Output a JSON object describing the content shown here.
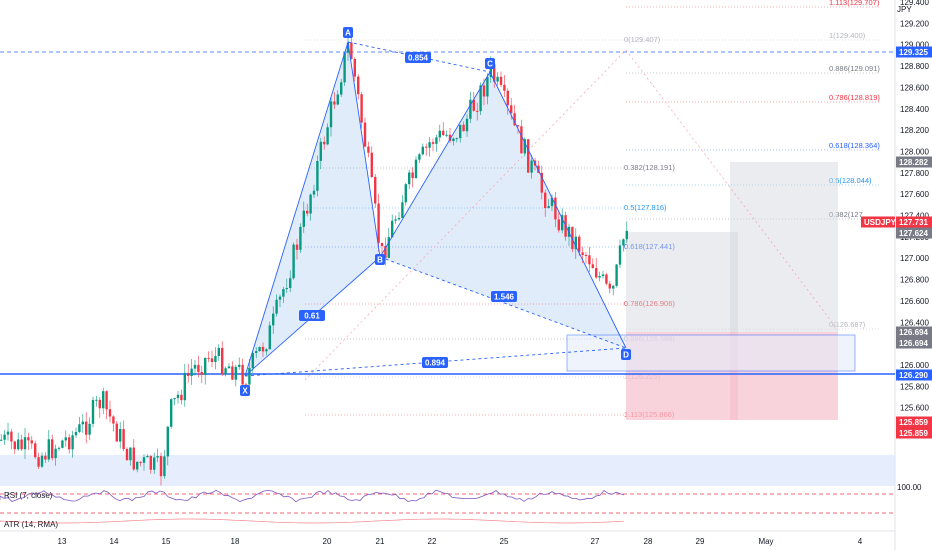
{
  "chart_data": {
    "type": "candlestick",
    "symbol": "USDJPY",
    "currency": "JPY",
    "price_axis": {
      "ticks": [
        "129.400",
        "129.200",
        "129.000",
        "128.800",
        "128.600",
        "128.400",
        "128.200",
        "128.000",
        "127.800",
        "127.600",
        "127.400",
        "127.200",
        "127.000",
        "126.800",
        "126.600",
        "126.400",
        "126.200",
        "126.000",
        "125.800",
        "125.600",
        "125.400"
      ],
      "range": [
        125.26,
        129.6
      ]
    },
    "time_axis": [
      "13",
      "14",
      "15",
      "18",
      "20",
      "21",
      "22",
      "25",
      "27",
      "28",
      "29",
      "May",
      "4"
    ],
    "price_tags": [
      {
        "value": "129.325",
        "color": "#2962ff"
      },
      {
        "value": "128.282",
        "color": "#787b86"
      },
      {
        "value": "127.731",
        "color": "#f23645",
        "label": "USDJPY"
      },
      {
        "value": "127.624",
        "color": "#787b86"
      },
      {
        "value": "126.694",
        "color": "#787b86"
      },
      {
        "value": "126.694",
        "color": "#787b86"
      },
      {
        "value": "126.290",
        "color": "#2962ff"
      },
      {
        "value": "125.859",
        "color": "#f23645"
      },
      {
        "value": "125.859",
        "color": "#f23645"
      }
    ],
    "pattern_points": [
      {
        "label": "X",
        "price": 126.25
      },
      {
        "label": "A",
        "price": 129.4
      },
      {
        "label": "B",
        "price": 127.45
      },
      {
        "label": "C",
        "price": 129.1
      },
      {
        "label": "D",
        "price": 126.6
      }
    ],
    "ratios": [
      "0.854",
      "0.61",
      "1.546",
      "0.894"
    ],
    "fib_levels_right": [
      {
        "text": "1.113(129.707)",
        "color": "#f23645"
      },
      {
        "text": "1(129.400)",
        "color": "#b2b5be"
      },
      {
        "text": "0.886(129.091)",
        "color": "#787b86"
      },
      {
        "text": "0.786(128.819)",
        "color": "#f23645"
      },
      {
        "text": "0.618(128.364)",
        "color": "#2962ff"
      },
      {
        "text": "0.5(128.044)",
        "color": "#2196f3"
      },
      {
        "text": "0.382(127",
        "color": "#787b86"
      },
      {
        "text": "0(126.687)",
        "color": "#b2b5be"
      }
    ],
    "fib_levels_left": [
      {
        "text": "0(129.407)",
        "color": "#b2b5be"
      },
      {
        "text": "0.382(128.191)",
        "color": "#787b86"
      },
      {
        "text": "0.5(127.816)",
        "color": "#2196f3"
      },
      {
        "text": "0.618(127.441)",
        "color": "#2962ff"
      },
      {
        "text": "0.786(126.906)",
        "color": "#f23645"
      },
      {
        "text": "0.886(126.588)",
        "color": "#787b86"
      },
      {
        "text": "1(126.225)",
        "color": "#b2b5be"
      },
      {
        "text": "1.113(125.866)",
        "color": "#f23645"
      }
    ],
    "indicators": [
      {
        "name": "RSI (7, close)",
        "level": "100.00"
      },
      {
        "name": "ATR (14, RMA)"
      }
    ]
  }
}
